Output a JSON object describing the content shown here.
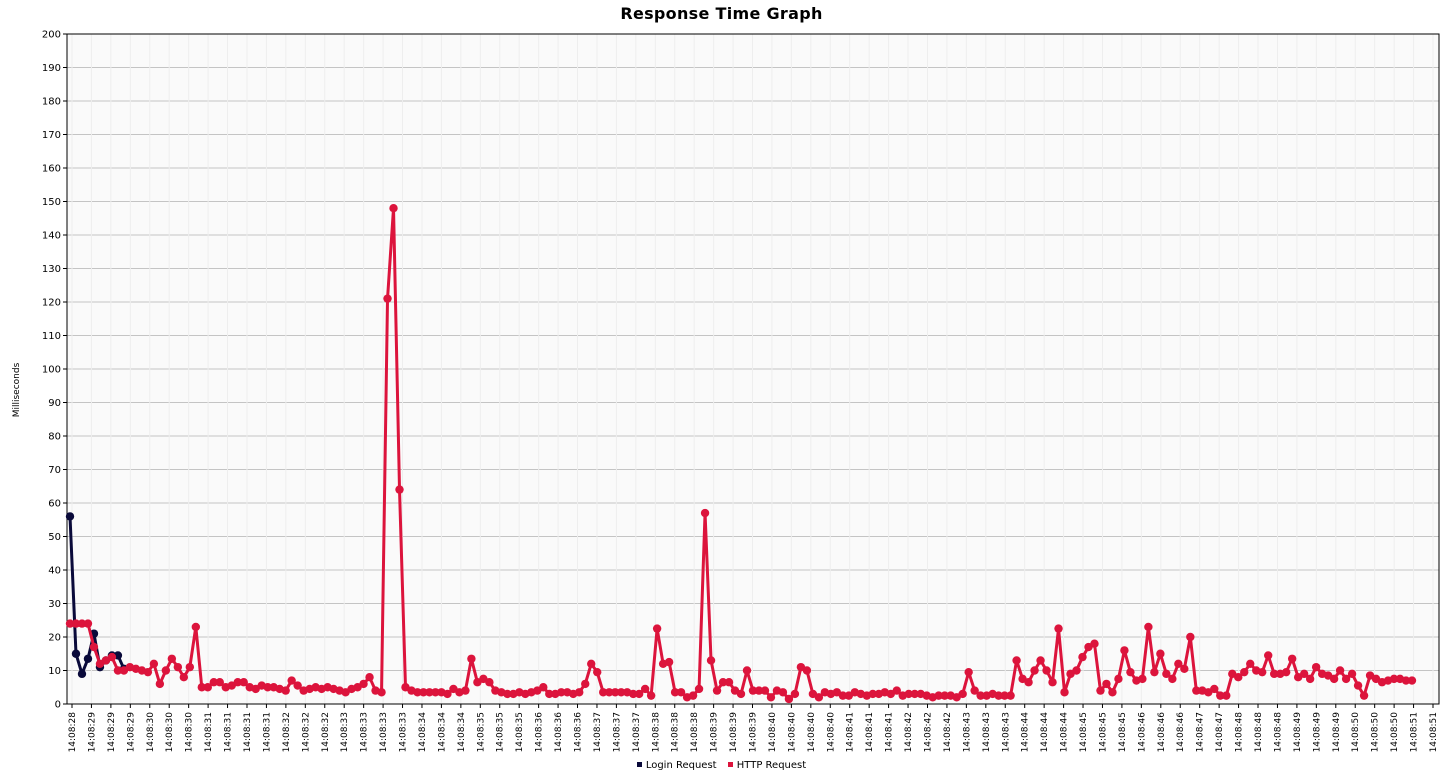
{
  "chart_data": {
    "type": "line",
    "title": "Response Time Graph",
    "xlabel": "",
    "ylabel": "Milliseconds",
    "ylim": [
      0,
      200
    ],
    "yticks": [
      0,
      10,
      20,
      30,
      40,
      50,
      60,
      70,
      80,
      90,
      100,
      110,
      120,
      130,
      140,
      150,
      160,
      170,
      180,
      190,
      200
    ],
    "xticks": [
      "14:08:28",
      "14:08:29",
      "14:08:29",
      "14:08:29",
      "14:08:30",
      "14:08:30",
      "14:08:30",
      "14:08:31",
      "14:08:31",
      "14:08:31",
      "14:08:31",
      "14:08:32",
      "14:08:32",
      "14:08:32",
      "14:08:33",
      "14:08:33",
      "14:08:33",
      "14:08:33",
      "14:08:34",
      "14:08:34",
      "14:08:34",
      "14:08:35",
      "14:08:35",
      "14:08:35",
      "14:08:36",
      "14:08:36",
      "14:08:36",
      "14:08:37",
      "14:08:37",
      "14:08:37",
      "14:08:38",
      "14:08:38",
      "14:08:38",
      "14:08:39",
      "14:08:39",
      "14:08:39",
      "14:08:40",
      "14:08:40",
      "14:08:40",
      "14:08:40",
      "14:08:41",
      "14:08:41",
      "14:08:41",
      "14:08:42",
      "14:08:42",
      "14:08:42",
      "14:08:43",
      "14:08:43",
      "14:08:43",
      "14:08:44",
      "14:08:44",
      "14:08:44",
      "14:08:45",
      "14:08:45",
      "14:08:45",
      "14:08:46",
      "14:08:46",
      "14:08:46",
      "14:08:47",
      "14:08:47",
      "14:08:48",
      "14:08:48",
      "14:08:48",
      "14:08:49",
      "14:08:49",
      "14:08:49",
      "14:08:50",
      "14:08:50",
      "14:08:50",
      "14:08:51",
      "14:08:51"
    ],
    "grid": true,
    "legend_position": "bottom",
    "series": [
      {
        "name": "Login Request",
        "color": "#0a0a3a",
        "values": [
          56,
          15,
          9,
          13.5,
          21,
          11,
          13,
          14.5,
          14.5,
          10.5
        ]
      },
      {
        "name": "HTTP Request",
        "color": "#dc143c",
        "values": [
          24,
          24,
          24,
          24,
          17,
          12,
          13,
          14,
          10,
          10,
          11,
          10.5,
          10,
          9.5,
          12,
          6,
          10,
          13.5,
          11,
          8,
          11,
          23,
          5,
          5,
          6.5,
          6.5,
          5,
          5.5,
          6.5,
          6.5,
          5,
          4.5,
          5.5,
          5,
          5,
          4.5,
          4,
          7,
          5.5,
          4,
          4.5,
          5,
          4.5,
          5,
          4.5,
          4,
          3.5,
          4.5,
          5,
          6,
          8,
          4,
          3.5,
          121,
          148,
          64,
          5,
          4,
          3.5,
          3.5,
          3.5,
          3.5,
          3.5,
          3,
          4.5,
          3.5,
          4,
          13.5,
          6.5,
          7.5,
          6.5,
          4,
          3.5,
          3,
          3,
          3.5,
          3,
          3.5,
          4,
          5,
          3,
          3,
          3.5,
          3.5,
          3,
          3.5,
          6,
          12,
          9.5,
          3.5,
          3.5,
          3.5,
          3.5,
          3.5,
          3,
          3,
          4.5,
          2.5,
          22.5,
          12,
          12.5,
          3.5,
          3.5,
          2,
          2.5,
          4.5,
          57,
          13,
          4,
          6.5,
          6.5,
          4,
          3,
          10,
          4,
          4,
          4,
          2,
          4,
          3.5,
          1.5,
          3,
          11,
          10,
          3,
          2,
          3.5,
          3,
          3.5,
          2.5,
          2.5,
          3.5,
          3,
          2.5,
          3,
          3,
          3.5,
          3,
          4,
          2.5,
          3,
          3,
          3,
          2.5,
          2,
          2.5,
          2.5,
          2.5,
          2,
          3,
          9.5,
          4,
          2.5,
          2.5,
          3,
          2.5,
          2.5,
          2.5,
          13,
          7.5,
          6.5,
          10,
          13,
          10,
          6.5,
          22.5,
          3.5,
          9,
          10,
          14,
          17,
          18,
          4,
          6,
          3.5,
          7.5,
          16,
          9.5,
          7,
          7.5,
          23,
          9.5,
          15,
          9,
          7.5,
          12,
          10.5,
          20,
          4,
          4,
          3.5,
          4.5,
          2.5,
          2.5,
          9,
          8,
          9.5,
          12,
          10,
          9.5,
          14.5,
          9,
          9,
          9.5,
          13.5,
          8,
          9,
          7.5,
          11,
          9,
          8.5,
          7.5,
          10,
          7.5,
          9,
          5.5,
          2.5,
          8.5,
          7.5,
          6.5,
          7,
          7.5,
          7.5,
          7,
          7
        ]
      }
    ]
  }
}
